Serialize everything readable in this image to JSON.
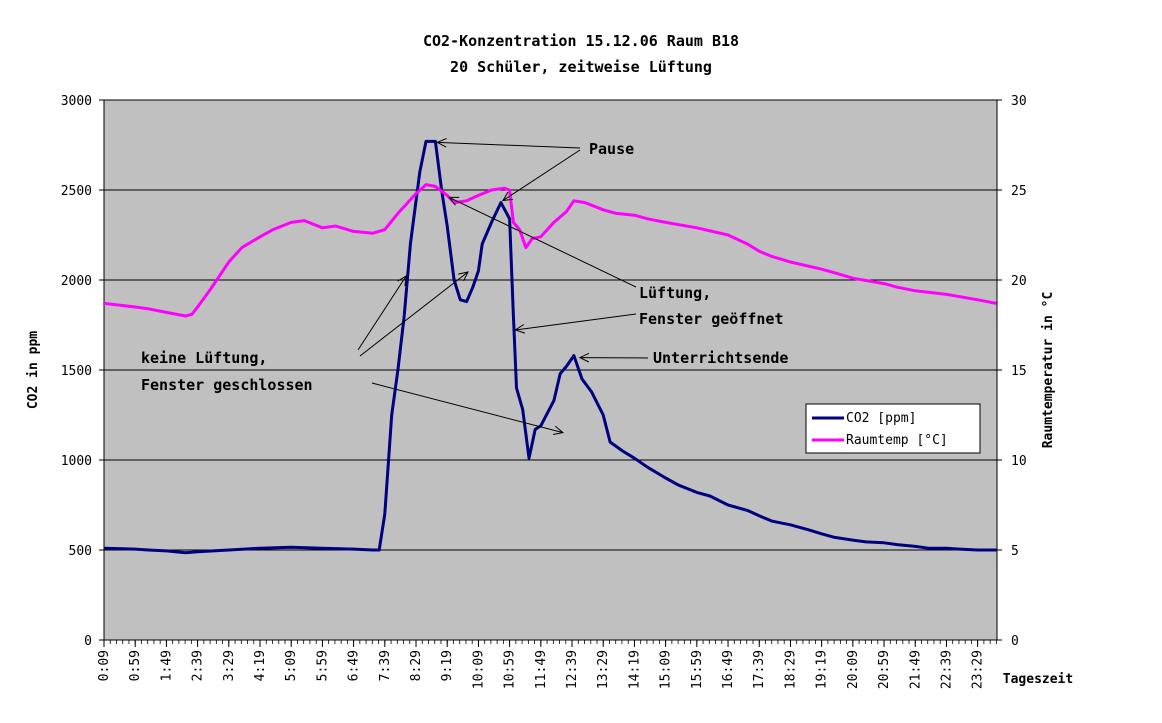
{
  "chart_data": {
    "type": "line",
    "title": "CO2-Konzentration 15.12.06 Raum B18",
    "subtitle": "20 Schüler, zeitweise Lüftung",
    "xlabel": "Tageszeit",
    "ylabel": "CO2 in ppm",
    "y2label": "Raumtemperatur in °C",
    "ylim": [
      0,
      3000
    ],
    "y2lim": [
      0,
      30
    ],
    "yticks": [
      "0",
      "500",
      "1000",
      "1500",
      "2000",
      "2500",
      "3000"
    ],
    "y2ticks": [
      "0",
      "5",
      "10",
      "15",
      "20",
      "25",
      "30"
    ],
    "xticks": [
      "0:09",
      "0:59",
      "1:49",
      "2:39",
      "3:29",
      "4:19",
      "5:09",
      "5:59",
      "6:49",
      "7:39",
      "8:29",
      "9:19",
      "10:09",
      "10:59",
      "11:49",
      "12:39",
      "13:29",
      "14:19",
      "15:09",
      "15:59",
      "16:49",
      "17:39",
      "18:29",
      "19:19",
      "20:09",
      "20:59",
      "21:49",
      "22:39",
      "23:29"
    ],
    "grid": "horizontal",
    "plot_background": "#c0c0c0",
    "legend_position": "right",
    "series": [
      {
        "name": "CO2 [ppm]",
        "axis": "left",
        "color": "#000080",
        "points": [
          [
            "0:09",
            510
          ],
          [
            "0:59",
            505
          ],
          [
            "1:20",
            500
          ],
          [
            "1:49",
            495
          ],
          [
            "2:20",
            485
          ],
          [
            "2:39",
            490
          ],
          [
            "3:29",
            500
          ],
          [
            "4:19",
            510
          ],
          [
            "5:09",
            515
          ],
          [
            "5:59",
            510
          ],
          [
            "6:49",
            505
          ],
          [
            "7:20",
            500
          ],
          [
            "7:30",
            500
          ],
          [
            "7:39",
            700
          ],
          [
            "7:50",
            1250
          ],
          [
            "8:00",
            1500
          ],
          [
            "8:10",
            1800
          ],
          [
            "8:20",
            2200
          ],
          [
            "8:35",
            2600
          ],
          [
            "8:45",
            2770
          ],
          [
            "9:00",
            2770
          ],
          [
            "9:10",
            2500
          ],
          [
            "9:19",
            2300
          ],
          [
            "9:30",
            2000
          ],
          [
            "9:40",
            1890
          ],
          [
            "9:50",
            1880
          ],
          [
            "10:00",
            1960
          ],
          [
            "10:09",
            2050
          ],
          [
            "10:15",
            2200
          ],
          [
            "10:30",
            2320
          ],
          [
            "10:45",
            2430
          ],
          [
            "10:59",
            2340
          ],
          [
            "11:05",
            1800
          ],
          [
            "11:10",
            1400
          ],
          [
            "11:20",
            1280
          ],
          [
            "11:30",
            1010
          ],
          [
            "11:40",
            1170
          ],
          [
            "11:49",
            1190
          ],
          [
            "12:10",
            1330
          ],
          [
            "12:20",
            1480
          ],
          [
            "12:30",
            1520
          ],
          [
            "12:42",
            1580
          ],
          [
            "12:55",
            1450
          ],
          [
            "13:10",
            1380
          ],
          [
            "13:29",
            1250
          ],
          [
            "13:40",
            1100
          ],
          [
            "14:00",
            1050
          ],
          [
            "14:19",
            1010
          ],
          [
            "14:40",
            960
          ],
          [
            "15:09",
            900
          ],
          [
            "15:30",
            860
          ],
          [
            "15:59",
            820
          ],
          [
            "16:20",
            800
          ],
          [
            "16:49",
            750
          ],
          [
            "17:20",
            720
          ],
          [
            "17:39",
            690
          ],
          [
            "18:00",
            660
          ],
          [
            "18:29",
            640
          ],
          [
            "19:00",
            610
          ],
          [
            "19:19",
            590
          ],
          [
            "19:40",
            570
          ],
          [
            "20:09",
            555
          ],
          [
            "20:30",
            545
          ],
          [
            "20:59",
            540
          ],
          [
            "21:20",
            530
          ],
          [
            "21:49",
            520
          ],
          [
            "22:10",
            510
          ],
          [
            "22:39",
            510
          ],
          [
            "23:00",
            505
          ],
          [
            "23:29",
            500
          ],
          [
            "23:59",
            500
          ]
        ]
      },
      {
        "name": "Raumtemp [°C]",
        "axis": "right",
        "color": "#ff00ff",
        "points": [
          [
            "0:09",
            18.7
          ],
          [
            "0:59",
            18.5
          ],
          [
            "1:20",
            18.4
          ],
          [
            "1:49",
            18.2
          ],
          [
            "2:20",
            18.0
          ],
          [
            "2:30",
            18.1
          ],
          [
            "2:39",
            18.5
          ],
          [
            "3:00",
            19.5
          ],
          [
            "3:29",
            21.0
          ],
          [
            "3:50",
            21.8
          ],
          [
            "4:19",
            22.4
          ],
          [
            "4:40",
            22.8
          ],
          [
            "5:09",
            23.2
          ],
          [
            "5:30",
            23.3
          ],
          [
            "5:59",
            22.9
          ],
          [
            "6:20",
            23.0
          ],
          [
            "6:49",
            22.7
          ],
          [
            "7:20",
            22.6
          ],
          [
            "7:39",
            22.8
          ],
          [
            "8:00",
            23.7
          ],
          [
            "8:29",
            24.8
          ],
          [
            "8:45",
            25.3
          ],
          [
            "9:00",
            25.2
          ],
          [
            "9:19",
            24.7
          ],
          [
            "9:30",
            24.3
          ],
          [
            "9:50",
            24.4
          ],
          [
            "10:09",
            24.7
          ],
          [
            "10:30",
            25.0
          ],
          [
            "10:50",
            25.1
          ],
          [
            "10:59",
            25.0
          ],
          [
            "11:05",
            23.2
          ],
          [
            "11:15",
            22.8
          ],
          [
            "11:25",
            21.8
          ],
          [
            "11:35",
            22.3
          ],
          [
            "11:49",
            22.4
          ],
          [
            "12:10",
            23.2
          ],
          [
            "12:30",
            23.8
          ],
          [
            "12:42",
            24.4
          ],
          [
            "13:00",
            24.3
          ],
          [
            "13:29",
            23.9
          ],
          [
            "13:50",
            23.7
          ],
          [
            "14:19",
            23.6
          ],
          [
            "14:40",
            23.4
          ],
          [
            "15:09",
            23.2
          ],
          [
            "15:59",
            22.9
          ],
          [
            "16:49",
            22.5
          ],
          [
            "17:20",
            22.0
          ],
          [
            "17:39",
            21.6
          ],
          [
            "18:00",
            21.3
          ],
          [
            "18:29",
            21.0
          ],
          [
            "19:19",
            20.6
          ],
          [
            "19:40",
            20.4
          ],
          [
            "20:09",
            20.1
          ],
          [
            "20:59",
            19.8
          ],
          [
            "21:20",
            19.6
          ],
          [
            "21:49",
            19.4
          ],
          [
            "22:39",
            19.2
          ],
          [
            "23:29",
            18.9
          ],
          [
            "23:59",
            18.7
          ]
        ]
      }
    ],
    "annotations": [
      {
        "text": "Pause"
      },
      {
        "text": "Lüftung,"
      },
      {
        "text": "Fenster geöffnet"
      },
      {
        "text": "Unterrichtsende"
      },
      {
        "text": "keine Lüftung,"
      },
      {
        "text": "Fenster geschlossen"
      }
    ]
  }
}
